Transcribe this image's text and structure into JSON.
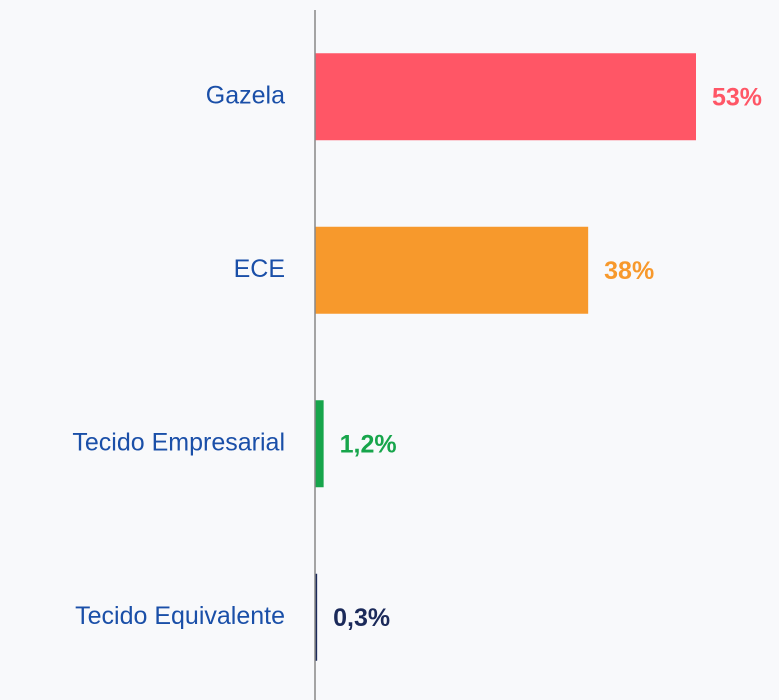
{
  "chart_data": {
    "type": "barh",
    "categories": [
      "Gazela",
      "ECE",
      "Tecido Empresarial",
      "Tecido Equivalente"
    ],
    "values": [
      53,
      38,
      1.2,
      0.3
    ],
    "value_labels": [
      "53%",
      "38%",
      "1,2%",
      "0,3%"
    ],
    "colors": [
      "#ff5666",
      "#f7992c",
      "#17a54b",
      "#1b2a5a"
    ]
  }
}
